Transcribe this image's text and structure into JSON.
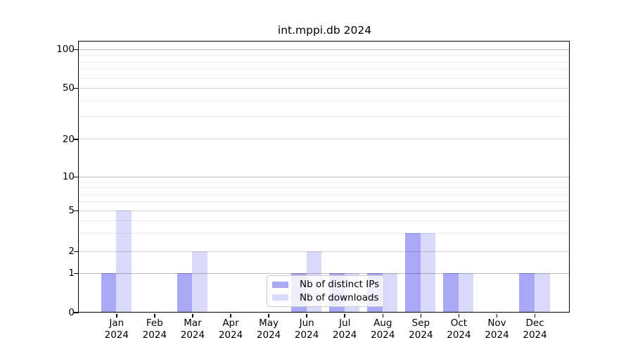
{
  "title": "int.mppi.db 2024",
  "chart_data": {
    "type": "bar",
    "title": "int.mppi.db 2024",
    "categories": [
      "Jan 2024",
      "Feb 2024",
      "Mar 2024",
      "Apr 2024",
      "May 2024",
      "Jun 2024",
      "Jul 2024",
      "Aug 2024",
      "Sep 2024",
      "Oct 2024",
      "Nov 2024",
      "Dec 2024"
    ],
    "x_tick_months": [
      "Jan",
      "Feb",
      "Mar",
      "Apr",
      "May",
      "Jun",
      "Jul",
      "Aug",
      "Sep",
      "Oct",
      "Nov",
      "Dec"
    ],
    "x_tick_year": "2024",
    "series": [
      {
        "name": "Nb of distinct IPs",
        "color": "#a8a8f6",
        "values": [
          1,
          0,
          1,
          0,
          0,
          1,
          1,
          1,
          3,
          1,
          0,
          1
        ]
      },
      {
        "name": "Nb of downloads",
        "color": "#d9d9f9",
        "values": [
          5,
          0,
          2,
          0,
          0,
          2,
          1,
          1,
          3,
          1,
          0,
          1
        ]
      }
    ],
    "yscale": "log-like (linear segment 0-1)",
    "yticks": [
      0,
      1,
      2,
      5,
      10,
      20,
      50,
      100
    ],
    "yticklabels": [
      "0",
      "1",
      "2",
      "5",
      "10",
      "20",
      "50",
      "100"
    ],
    "y_minor_ticks": [
      3,
      4,
      6,
      7,
      8,
      9,
      30,
      40,
      60,
      70,
      80,
      90
    ],
    "ylim": [
      0,
      112
    ],
    "grid": true,
    "legend_position": "bottom-center inside plot",
    "colors": {
      "axis": "#000000",
      "grid_major": "#d4d4d4",
      "grid_minor": "#ededed",
      "legend_border": "#cccccc"
    }
  }
}
